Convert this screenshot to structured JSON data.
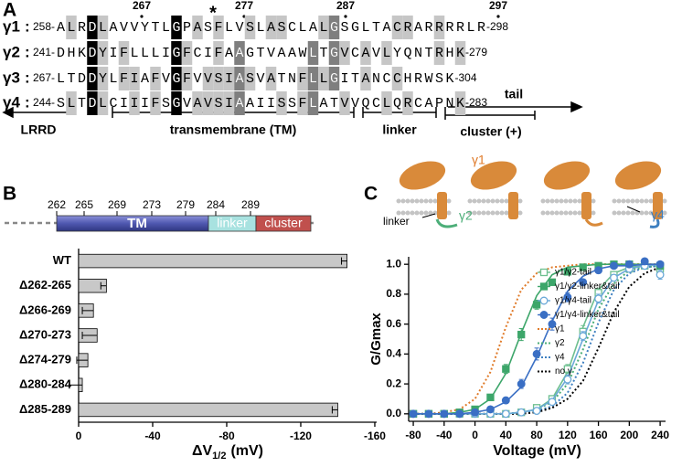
{
  "panel_a": {
    "label": "A",
    "markers": [
      267,
      277,
      287,
      297
    ],
    "star": "*",
    "separator": ":",
    "rows": [
      {
        "name": "γ1",
        "start": "258-",
        "sequence": "ALRDLAVVYTLGPASFLVSLASCLALGSGLTACRARRRRLR",
        "end": "-298"
      },
      {
        "name": "γ2",
        "start": "241-",
        "sequence": "DHKDYIFLLLIGFCIFAAGTVAAWLTGVCAVLYQNTRHK",
        "end": "-279"
      },
      {
        "name": "γ3",
        "start": "267-",
        "sequence": "LTDDYLFIAFVGFVVSIASVATNFLLGITANCCHRWSK",
        "end": "-304"
      },
      {
        "name": "γ4",
        "start": "244-",
        "sequence": "SLTDLCIIIFSGVAVSIAAIISSFLATVVQCLQRCAPNK",
        "end": "-283"
      }
    ],
    "domains": [
      "LRRD",
      "transmembrane (TM)",
      "linker",
      "cluster (+)",
      "tail"
    ]
  },
  "chart_data": [
    {
      "type": "bar",
      "label": "B",
      "schematic": {
        "residues": [
          262,
          265,
          269,
          273,
          279,
          284,
          289
        ],
        "segments": [
          "TM",
          "linker",
          "cluster"
        ]
      },
      "categories": [
        "WT",
        "Δ262-265",
        "Δ266-269",
        "Δ270-273",
        "Δ274-279",
        "Δ280-284",
        "Δ285-289"
      ],
      "values": [
        -145,
        -15,
        -8,
        -10,
        -5,
        -2,
        -140
      ],
      "errors": [
        3,
        3,
        6,
        8,
        6,
        7,
        3
      ],
      "color": "#c8c8c8",
      "xlim": [
        0,
        -161
      ],
      "xticks": [
        0,
        -40,
        -80,
        -120,
        -160
      ],
      "xlabel": [
        "ΔV",
        "1/2",
        "(mV)"
      ]
    },
    {
      "type": "line",
      "label": "C",
      "cartoon": {
        "gamma1": "γ1",
        "linker": "linker",
        "gamma2": "γ2",
        "gamma4": "γ4"
      },
      "xlabel": "Voltage (mV)",
      "ylabel": "G/Gmax",
      "xlim": [
        -86,
        247
      ],
      "xticks": [
        -80,
        -40,
        0,
        40,
        80,
        120,
        160,
        200,
        240
      ],
      "ylim": [
        -0.05,
        1.05
      ],
      "yticks": [
        {
          "value": 0,
          "label": "0.0"
        },
        0.2,
        0.4,
        0.6,
        0.8,
        {
          "value": 1,
          "label": "1.0"
        }
      ],
      "legend": "upper right",
      "series": [
        {
          "name": "γ1/γ2-tail",
          "color": "#6dbf8f",
          "marker": "square",
          "filled": false,
          "x": [
            -80,
            -60,
            -40,
            -20,
            0,
            20,
            40,
            60,
            80,
            100,
            120,
            140,
            160,
            180,
            200,
            220,
            240
          ],
          "values": [
            0,
            0,
            0,
            0,
            0,
            0,
            0,
            0.01,
            0.04,
            0.1,
            0.3,
            0.55,
            0.81,
            0.93,
            0.97,
            0.99,
            0.97
          ],
          "errors": [
            0,
            0,
            0,
            0,
            0,
            0,
            0,
            0.01,
            0.01,
            0.02,
            0.03,
            0.04,
            0.03,
            0.02,
            0.02,
            0.01,
            0.02
          ],
          "fit": [
            0,
            0,
            0,
            0,
            0,
            0,
            0,
            0.01,
            0.03,
            0.1,
            0.28,
            0.58,
            0.83,
            0.94,
            0.98,
            0.99,
            1
          ]
        },
        {
          "name": "γ1/γ2-linker&tail",
          "color": "#3da66a",
          "marker": "square",
          "filled": true,
          "x": [
            -80,
            -60,
            -40,
            -20,
            0,
            20,
            40,
            60,
            80,
            100,
            120,
            140,
            160,
            180,
            200,
            220,
            240
          ],
          "values": [
            0,
            0,
            0,
            0.01,
            0.03,
            0.11,
            0.3,
            0.53,
            0.73,
            0.88,
            0.95,
            0.98,
            0.99,
            1,
            1,
            1,
            0.99
          ],
          "errors": [
            0,
            0,
            0,
            0.01,
            0.01,
            0.02,
            0.03,
            0.04,
            0.03,
            0.02,
            0.02,
            0.01,
            0.01,
            0.01,
            0.01,
            0.01,
            0.01
          ],
          "fit": [
            0,
            0,
            0,
            0.01,
            0.03,
            0.1,
            0.27,
            0.54,
            0.79,
            0.93,
            0.98,
            0.99,
            1,
            1,
            1,
            1,
            1
          ]
        },
        {
          "name": "γ1/γ4-tail",
          "color": "#6aa8d8",
          "marker": "circle",
          "filled": false,
          "x": [
            -80,
            -60,
            -40,
            -20,
            0,
            20,
            40,
            60,
            80,
            100,
            120,
            140,
            160,
            180,
            200,
            220,
            240
          ],
          "values": [
            0,
            0,
            0,
            0,
            0,
            0,
            0,
            0.01,
            0.02,
            0.08,
            0.23,
            0.52,
            0.77,
            0.91,
            0.97,
            0.99,
            0.93
          ],
          "errors": [
            0,
            0,
            0,
            0,
            0,
            0,
            0,
            0.01,
            0.01,
            0.02,
            0.03,
            0.03,
            0.03,
            0.02,
            0.02,
            0.01,
            0.03
          ],
          "fit": [
            0,
            0,
            0,
            0,
            0,
            0,
            0,
            0.01,
            0.03,
            0.09,
            0.24,
            0.5,
            0.76,
            0.91,
            0.97,
            0.99,
            1
          ]
        },
        {
          "name": "γ1/γ4-linker&tail",
          "color": "#3a6fc4",
          "marker": "circle",
          "filled": true,
          "x": [
            -80,
            -60,
            -40,
            -20,
            0,
            20,
            40,
            60,
            80,
            100,
            120,
            140,
            160,
            180,
            200,
            220,
            240
          ],
          "values": [
            0,
            0,
            0,
            0,
            0.01,
            0.03,
            0.09,
            0.2,
            0.4,
            0.6,
            0.78,
            0.88,
            0.96,
            0.99,
            1,
            1.02,
            1
          ],
          "errors": [
            0,
            0,
            0,
            0,
            0.01,
            0.01,
            0.02,
            0.03,
            0.04,
            0.04,
            0.03,
            0.02,
            0.02,
            0.01,
            0.01,
            0.01,
            0.01
          ],
          "fit": [
            0,
            0,
            0,
            0,
            0.01,
            0.03,
            0.08,
            0.18,
            0.38,
            0.62,
            0.82,
            0.92,
            0.97,
            0.99,
            0.99,
            1,
            1
          ]
        },
        {
          "name": "γ1",
          "color": "#e07b2a",
          "line": "dotted",
          "x": [
            -80,
            -60,
            -40,
            -20,
            0,
            20,
            40,
            60,
            80,
            100,
            120,
            140,
            160,
            180,
            200,
            220,
            240
          ],
          "values": [
            0,
            0,
            0.01,
            0.03,
            0.1,
            0.28,
            0.58,
            0.83,
            0.94,
            0.98,
            0.99,
            1,
            1,
            1,
            1,
            1,
            1
          ]
        },
        {
          "name": "γ2",
          "color": "#4cae78",
          "line": "dotted",
          "x": [
            -80,
            -60,
            -40,
            -20,
            0,
            20,
            40,
            60,
            80,
            100,
            120,
            140,
            160,
            180,
            200,
            220,
            240
          ],
          "values": [
            0,
            0,
            0,
            0,
            0,
            0,
            0,
            0.01,
            0.03,
            0.08,
            0.2,
            0.43,
            0.7,
            0.87,
            0.96,
            0.98,
            0.99
          ]
        },
        {
          "name": "γ4",
          "color": "#3d7fc0",
          "line": "dotted",
          "x": [
            -80,
            -60,
            -40,
            -20,
            0,
            20,
            40,
            60,
            80,
            100,
            120,
            140,
            160,
            180,
            200,
            220,
            240
          ],
          "values": [
            0,
            0,
            0,
            0,
            0,
            0,
            0,
            0.01,
            0.02,
            0.05,
            0.14,
            0.34,
            0.61,
            0.83,
            0.94,
            0.98,
            0.99
          ]
        },
        {
          "name": "no γ",
          "color": "#000000",
          "line": "dotted",
          "x": [
            -80,
            -60,
            -40,
            -20,
            0,
            20,
            40,
            60,
            80,
            100,
            120,
            140,
            160,
            180,
            200,
            220,
            240
          ],
          "values": [
            0,
            0,
            0,
            0,
            0,
            0,
            0,
            0,
            0.01,
            0.04,
            0.1,
            0.22,
            0.44,
            0.68,
            0.85,
            0.94,
            0.98
          ]
        }
      ]
    }
  ]
}
